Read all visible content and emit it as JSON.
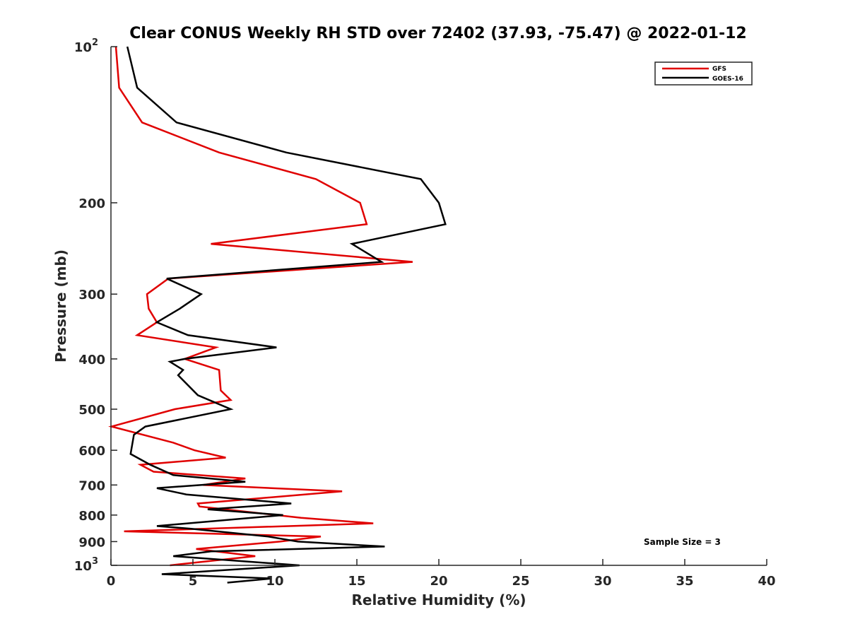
{
  "chart_data": {
    "type": "line",
    "title": "Clear CONUS Weekly RH STD over 72402 (37.93, -75.47) @ 2022-01-12",
    "xlabel": "Relative Humidity (%)",
    "ylabel": "Pressure (mb)",
    "xlim": [
      0,
      40
    ],
    "ylim": [
      100,
      1000
    ],
    "yscale": "log",
    "y_reversed": true,
    "grid": false,
    "legend_position": "top-right",
    "x_ticks": [
      0,
      5,
      10,
      15,
      20,
      25,
      30,
      35,
      40
    ],
    "x_tick_labels": [
      "0",
      "5",
      "10",
      "15",
      "20",
      "25",
      "30",
      "35",
      "40"
    ],
    "y_ticks": [
      100,
      200,
      300,
      400,
      500,
      600,
      700,
      800,
      900,
      1000
    ],
    "y_tick_labels": [
      "10^2",
      "200",
      "300",
      "400",
      "500",
      "600",
      "700",
      "800",
      "900",
      "10^3"
    ],
    "annotation": "Sample Size = 3",
    "series": [
      {
        "name": "GFS",
        "color": "#e00000",
        "points": [
          [
            0.3,
            100
          ],
          [
            0.5,
            120
          ],
          [
            1.9,
            140
          ],
          [
            6.6,
            160
          ],
          [
            12.5,
            180
          ],
          [
            15.2,
            200
          ],
          [
            15.6,
            220
          ],
          [
            6.1,
            240
          ],
          [
            18.4,
            260
          ],
          [
            3.5,
            280
          ],
          [
            2.2,
            300
          ],
          [
            2.3,
            320
          ],
          [
            2.8,
            340
          ],
          [
            1.6,
            360
          ],
          [
            6.4,
            380
          ],
          [
            4.5,
            400
          ],
          [
            6.6,
            420
          ],
          [
            6.7,
            460
          ],
          [
            7.3,
            480
          ],
          [
            3.9,
            500
          ],
          [
            0.04,
            540
          ],
          [
            3.8,
            580
          ],
          [
            5.1,
            600
          ],
          [
            7.0,
            620
          ],
          [
            1.8,
            640
          ],
          [
            2.6,
            660
          ],
          [
            8.2,
            680
          ],
          [
            5.6,
            700
          ],
          [
            14.1,
            720
          ],
          [
            5.3,
            760
          ],
          [
            5.4,
            770
          ],
          [
            11.6,
            810
          ],
          [
            16.0,
            830
          ],
          [
            0.8,
            860
          ],
          [
            12.8,
            880
          ],
          [
            10.3,
            900
          ],
          [
            5.2,
            930
          ],
          [
            8.8,
            960
          ],
          [
            3.6,
            1000
          ]
        ]
      },
      {
        "name": "GOES-16",
        "color": "#000000",
        "points": [
          [
            1.0,
            100
          ],
          [
            1.6,
            120
          ],
          [
            4.0,
            140
          ],
          [
            10.7,
            160
          ],
          [
            18.9,
            180
          ],
          [
            20.0,
            200
          ],
          [
            20.4,
            220
          ],
          [
            14.7,
            240
          ],
          [
            16.5,
            260
          ],
          [
            3.4,
            280
          ],
          [
            5.5,
            300
          ],
          [
            4.2,
            320
          ],
          [
            2.8,
            340
          ],
          [
            4.7,
            360
          ],
          [
            10.1,
            380
          ],
          [
            4.5,
            400
          ],
          [
            3.6,
            405
          ],
          [
            4.4,
            420
          ],
          [
            4.1,
            430
          ],
          [
            5.3,
            470
          ],
          [
            7.3,
            500
          ],
          [
            2.1,
            540
          ],
          [
            1.4,
            560
          ],
          [
            1.2,
            610
          ],
          [
            2.4,
            640
          ],
          [
            3.8,
            670
          ],
          [
            8.2,
            690
          ],
          [
            2.8,
            710
          ],
          [
            4.6,
            730
          ],
          [
            11.0,
            760
          ],
          [
            5.9,
            780
          ],
          [
            10.5,
            800
          ],
          [
            2.8,
            840
          ],
          [
            4.9,
            850
          ],
          [
            9.6,
            880
          ],
          [
            11.4,
            900
          ],
          [
            16.7,
            920
          ],
          [
            6.1,
            940
          ],
          [
            3.8,
            960
          ],
          [
            11.5,
            1000
          ],
          [
            3.1,
            1040
          ],
          [
            9.8,
            1060
          ],
          [
            7.1,
            1080
          ]
        ]
      }
    ]
  }
}
